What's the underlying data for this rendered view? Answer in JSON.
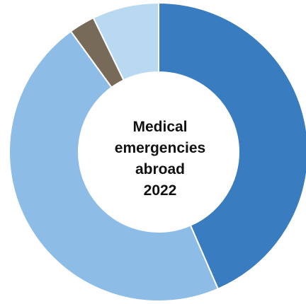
{
  "chart_data": {
    "type": "pie",
    "variant": "donut",
    "center_text": [
      "Medical",
      "emergencies",
      "abroad",
      "2022"
    ],
    "slices": [
      {
        "value": 43.5,
        "color": "#3a7cc0"
      },
      {
        "value": 46.5,
        "color": "#8dbde6"
      },
      {
        "value": 2.8,
        "color": "#786a58"
      },
      {
        "value": 7.2,
        "color": "#b9d9f1"
      }
    ],
    "start": "top",
    "direction": "clockwise",
    "legend": "none"
  }
}
